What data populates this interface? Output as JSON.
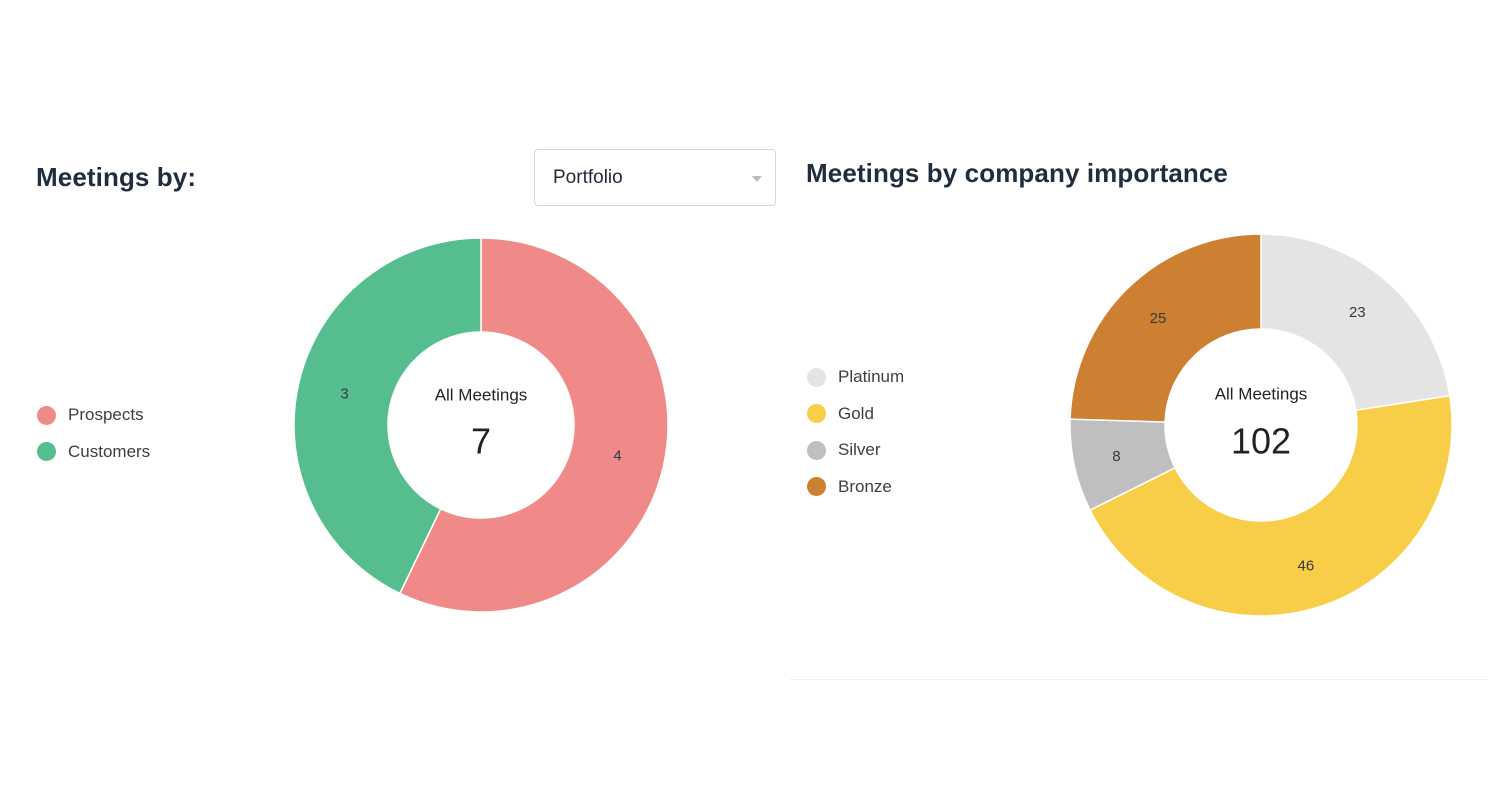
{
  "left_panel": {
    "title": "Meetings by:",
    "select": {
      "value": "Portfolio"
    }
  },
  "right_panel": {
    "title": "Meetings by company importance"
  },
  "chart_data": [
    {
      "type": "pie",
      "donut": true,
      "title": "",
      "center_label": "All Meetings",
      "center_value": "7",
      "legend_position": "left",
      "categories": [
        "Prospects",
        "Customers"
      ],
      "values": [
        4,
        3
      ],
      "colors": [
        "#f08a89",
        "#56bd8e"
      ],
      "slice_order": [
        "Prospects",
        "Customers"
      ]
    },
    {
      "type": "pie",
      "donut": true,
      "title": "",
      "center_label": "All Meetings",
      "center_value": "102",
      "legend_position": "left",
      "categories": [
        "Platinum",
        "Gold",
        "Silver",
        "Bronze"
      ],
      "values": [
        23,
        46,
        8,
        25
      ],
      "colors": [
        "#e5e4e2",
        "#f8cd48",
        "#bfbfbf",
        "#cd7f32"
      ]
    }
  ]
}
